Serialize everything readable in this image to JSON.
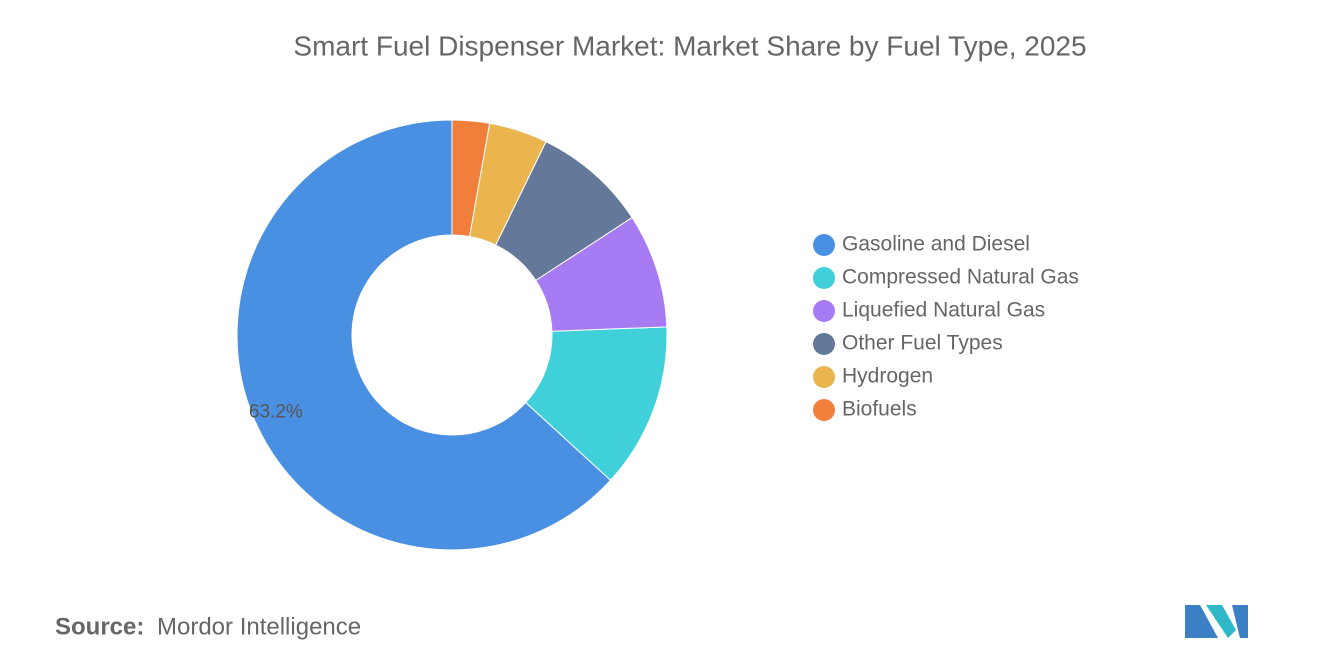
{
  "chart_data": {
    "type": "donut",
    "title": "Smart Fuel Dispenser Market: Market Share by Fuel Type, 2025",
    "categories": [
      "Gasoline and Diesel",
      "Compressed Natural Gas",
      "Liquefied Natural Gas",
      "Other Fuel Types",
      "Hydrogen",
      "Biofuels"
    ],
    "values": [
      63.2,
      12.4,
      8.6,
      8.6,
      4.4,
      2.8
    ],
    "value_labels": [
      "63.2%",
      null,
      null,
      null,
      null,
      null
    ],
    "colors": [
      "#4a90e2",
      "#3fd0d9",
      "#a77bf3",
      "#64789a",
      "#eab54e",
      "#f07f3c"
    ],
    "legend": "right"
  },
  "source": {
    "label": "Source:",
    "text": "Mordor Intelligence"
  }
}
